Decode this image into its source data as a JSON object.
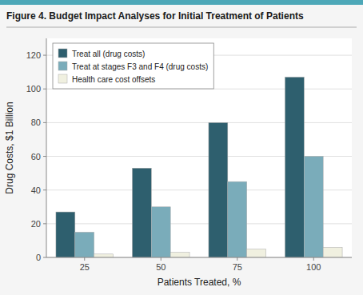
{
  "chart_data": {
    "type": "bar",
    "title": "Figure 4. Budget Impact Analyses for Initial Treatment of Patients",
    "x_label": "Patients Treated, %",
    "y_label": "Drug Costs, $1 Billion",
    "categories": [
      25,
      50,
      75,
      100
    ],
    "series": [
      {
        "name": "Treat all (drug costs)",
        "color": "#2e5f6e",
        "values": [
          27,
          53,
          80,
          107
        ]
      },
      {
        "name": "Treat at stages F3 and F4 (drug costs)",
        "color": "#7aacba",
        "values": [
          15,
          30,
          45,
          60
        ]
      },
      {
        "name": "Health care cost offsets",
        "color": "#f0f0e0",
        "values": [
          2,
          3,
          5,
          6
        ]
      }
    ],
    "ylim": [
      0,
      130
    ],
    "yticks": [
      0,
      20,
      40,
      60,
      80,
      100,
      120
    ],
    "grid": true,
    "legend": "upper left"
  }
}
